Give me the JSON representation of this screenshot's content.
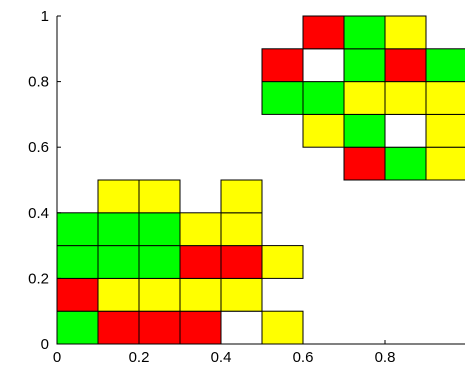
{
  "chart_data": {
    "type": "heatmap",
    "xlim": [
      0,
      1
    ],
    "ylim": [
      0,
      1
    ],
    "cell_width": 0.1,
    "cell_height": 0.1,
    "grid": false,
    "x_ticks": [
      0,
      0.2,
      0.4,
      0.6,
      0.8
    ],
    "x_tick_labels": [
      "0",
      "0.2",
      "0.4",
      "0.6",
      "0.8"
    ],
    "y_ticks": [
      0,
      0.2,
      0.4,
      0.6,
      0.8,
      1
    ],
    "y_tick_labels": [
      "0",
      "0.2",
      "0.4",
      "0.6",
      "0.8",
      "1"
    ],
    "colors": {
      "green": "#00ff00",
      "red": "#ff0000",
      "yellow": "#ffff00",
      "white": "#ffffff"
    },
    "cells": [
      {
        "x": 0.0,
        "y": 0.0,
        "color": "green"
      },
      {
        "x": 0.1,
        "y": 0.0,
        "color": "red"
      },
      {
        "x": 0.2,
        "y": 0.0,
        "color": "red"
      },
      {
        "x": 0.3,
        "y": 0.0,
        "color": "red"
      },
      {
        "x": 0.4,
        "y": 0.0,
        "color": "white"
      },
      {
        "x": 0.5,
        "y": 0.0,
        "color": "yellow"
      },
      {
        "x": 0.0,
        "y": 0.1,
        "color": "red"
      },
      {
        "x": 0.1,
        "y": 0.1,
        "color": "yellow"
      },
      {
        "x": 0.2,
        "y": 0.1,
        "color": "yellow"
      },
      {
        "x": 0.3,
        "y": 0.1,
        "color": "yellow"
      },
      {
        "x": 0.4,
        "y": 0.1,
        "color": "yellow"
      },
      {
        "x": 0.0,
        "y": 0.2,
        "color": "green"
      },
      {
        "x": 0.1,
        "y": 0.2,
        "color": "green"
      },
      {
        "x": 0.2,
        "y": 0.2,
        "color": "green"
      },
      {
        "x": 0.3,
        "y": 0.2,
        "color": "red"
      },
      {
        "x": 0.4,
        "y": 0.2,
        "color": "red"
      },
      {
        "x": 0.5,
        "y": 0.2,
        "color": "yellow"
      },
      {
        "x": 0.0,
        "y": 0.3,
        "color": "green"
      },
      {
        "x": 0.1,
        "y": 0.3,
        "color": "green"
      },
      {
        "x": 0.2,
        "y": 0.3,
        "color": "green"
      },
      {
        "x": 0.3,
        "y": 0.3,
        "color": "yellow"
      },
      {
        "x": 0.4,
        "y": 0.3,
        "color": "yellow"
      },
      {
        "x": 0.1,
        "y": 0.4,
        "color": "yellow"
      },
      {
        "x": 0.2,
        "y": 0.4,
        "color": "yellow"
      },
      {
        "x": 0.4,
        "y": 0.4,
        "color": "yellow"
      },
      {
        "x": 0.7,
        "y": 0.5,
        "color": "red"
      },
      {
        "x": 0.8,
        "y": 0.5,
        "color": "green"
      },
      {
        "x": 0.9,
        "y": 0.5,
        "color": "yellow"
      },
      {
        "x": 0.6,
        "y": 0.6,
        "color": "yellow"
      },
      {
        "x": 0.7,
        "y": 0.6,
        "color": "green"
      },
      {
        "x": 0.8,
        "y": 0.6,
        "color": "white"
      },
      {
        "x": 0.9,
        "y": 0.6,
        "color": "yellow"
      },
      {
        "x": 0.5,
        "y": 0.7,
        "color": "green"
      },
      {
        "x": 0.6,
        "y": 0.7,
        "color": "green"
      },
      {
        "x": 0.7,
        "y": 0.7,
        "color": "yellow"
      },
      {
        "x": 0.8,
        "y": 0.7,
        "color": "yellow"
      },
      {
        "x": 0.9,
        "y": 0.7,
        "color": "yellow"
      },
      {
        "x": 0.5,
        "y": 0.8,
        "color": "red"
      },
      {
        "x": 0.6,
        "y": 0.8,
        "color": "white"
      },
      {
        "x": 0.7,
        "y": 0.8,
        "color": "green"
      },
      {
        "x": 0.8,
        "y": 0.8,
        "color": "red"
      },
      {
        "x": 0.9,
        "y": 0.8,
        "color": "green"
      },
      {
        "x": 0.6,
        "y": 0.9,
        "color": "red"
      },
      {
        "x": 0.7,
        "y": 0.9,
        "color": "green"
      },
      {
        "x": 0.8,
        "y": 0.9,
        "color": "yellow"
      }
    ]
  }
}
